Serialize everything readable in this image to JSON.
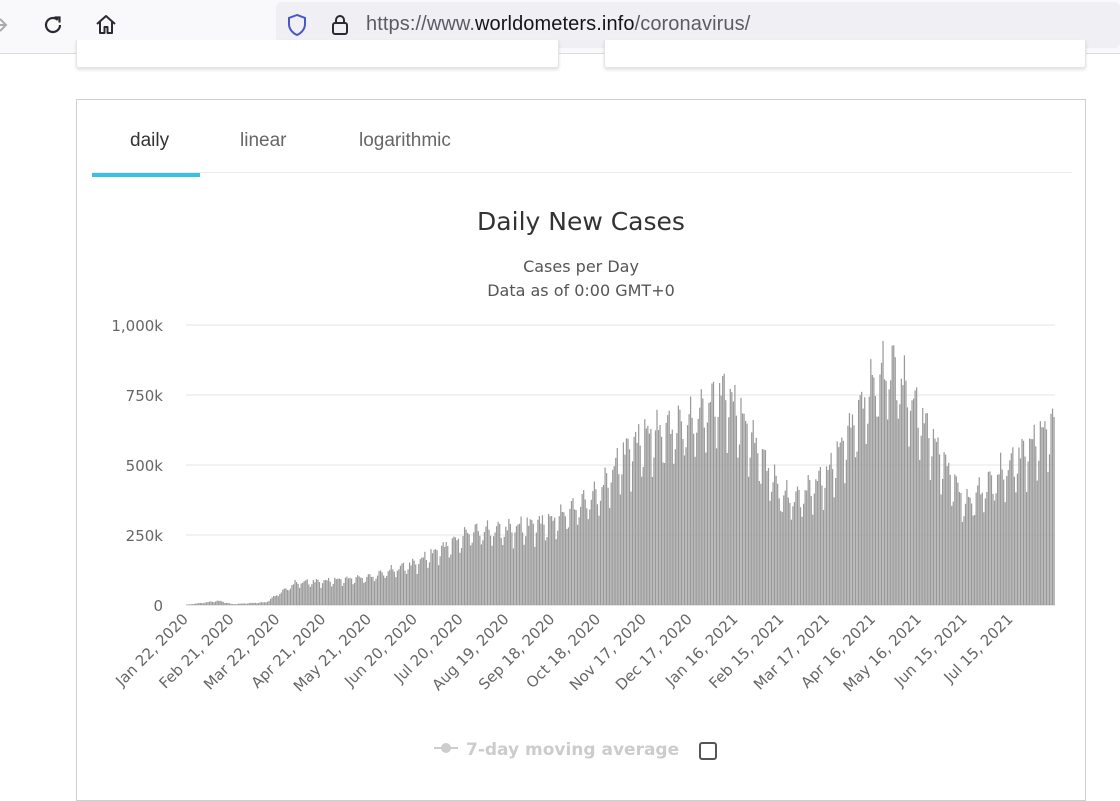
{
  "browser": {
    "url_prefix": "https://www.",
    "url_domain": "worldometers.info",
    "url_path": "/coronavirus/"
  },
  "tabs": [
    {
      "label": "daily",
      "active": true
    },
    {
      "label": "linear",
      "active": false
    },
    {
      "label": "logarithmic",
      "active": false
    }
  ],
  "chart_data": {
    "type": "bar",
    "title": "Daily New Cases",
    "subtitle_line1": "Cases per Day",
    "subtitle_line2": "Data as of 0:00 GMT+0",
    "ylim": [
      0,
      1000000
    ],
    "y_ticks": [
      0,
      250000,
      500000,
      750000,
      1000000
    ],
    "y_tick_labels": [
      "0",
      "250k",
      "500k",
      "750k",
      "1,000k"
    ],
    "x_tick_labels": [
      "Jan 22, 2020",
      "Feb 21, 2020",
      "Mar 22, 2020",
      "Apr 21, 2020",
      "May 21, 2020",
      "Jun 20, 2020",
      "Jul 20, 2020",
      "Aug 19, 2020",
      "Sep 18, 2020",
      "Oct 18, 2020",
      "Nov 17, 2020",
      "Dec 17, 2020",
      "Jan 16, 2021",
      "Feb 15, 2021",
      "Mar 17, 2021",
      "Apr 16, 2021",
      "May 16, 2021",
      "Jun 15, 2021",
      "Jul 15, 2021"
    ],
    "start_date": "Jan 22, 2020",
    "end_date": "Aug 12, 2021",
    "bar_color": "#999999",
    "trend_dates": [
      "Jan 22, 2020",
      "Feb 12, 2020",
      "Feb 21, 2020",
      "Mar 14, 2020",
      "Mar 22, 2020",
      "Apr 3, 2020",
      "Apr 21, 2020",
      "May 21, 2020",
      "Jun 20, 2020",
      "Jul 20, 2020",
      "Jul 25, 2020",
      "Aug 19, 2020",
      "Sep 18, 2020",
      "Oct 18, 2020",
      "Nov 5, 2020",
      "Nov 17, 2020",
      "Dec 17, 2020",
      "Jan 8, 2021",
      "Jan 16, 2021",
      "Feb 15, 2021",
      "Feb 25, 2021",
      "Mar 17, 2021",
      "Apr 16, 2021",
      "Apr 28, 2021",
      "May 16, 2021",
      "Jun 15, 2021",
      "Jul 15, 2021",
      "Aug 12, 2021"
    ],
    "trend_values": [
      1000,
      15000,
      3000,
      10000,
      40000,
      80000,
      85000,
      100000,
      150000,
      240000,
      260000,
      270000,
      300000,
      400000,
      550000,
      600000,
      650000,
      760000,
      700000,
      390000,
      380000,
      470000,
      790000,
      850000,
      680000,
      360000,
      500000,
      650000
    ],
    "legend": {
      "label": "7-day moving average"
    }
  }
}
